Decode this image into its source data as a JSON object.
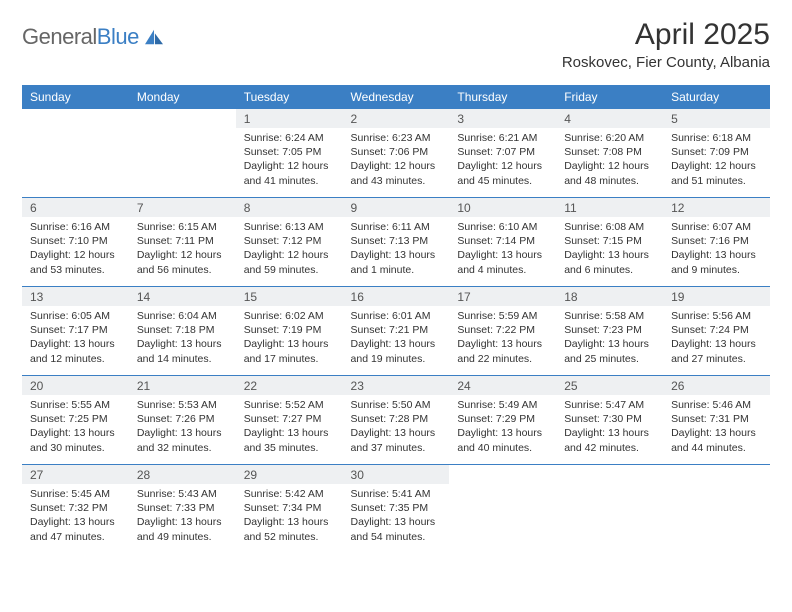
{
  "brand": {
    "part1": "General",
    "part2": "Blue"
  },
  "title": "April 2025",
  "location": "Roskovec, Fier County, Albania",
  "colors": {
    "accent": "#3b7fc4",
    "dayHeaderBg": "#eef0f2",
    "text": "#333333",
    "bg": "#ffffff"
  },
  "weekdays": [
    "Sunday",
    "Monday",
    "Tuesday",
    "Wednesday",
    "Thursday",
    "Friday",
    "Saturday"
  ],
  "weeks": [
    [
      {
        "empty": true
      },
      {
        "empty": true
      },
      {
        "day": "1",
        "sunrise": "Sunrise: 6:24 AM",
        "sunset": "Sunset: 7:05 PM",
        "daylight": "Daylight: 12 hours and 41 minutes."
      },
      {
        "day": "2",
        "sunrise": "Sunrise: 6:23 AM",
        "sunset": "Sunset: 7:06 PM",
        "daylight": "Daylight: 12 hours and 43 minutes."
      },
      {
        "day": "3",
        "sunrise": "Sunrise: 6:21 AM",
        "sunset": "Sunset: 7:07 PM",
        "daylight": "Daylight: 12 hours and 45 minutes."
      },
      {
        "day": "4",
        "sunrise": "Sunrise: 6:20 AM",
        "sunset": "Sunset: 7:08 PM",
        "daylight": "Daylight: 12 hours and 48 minutes."
      },
      {
        "day": "5",
        "sunrise": "Sunrise: 6:18 AM",
        "sunset": "Sunset: 7:09 PM",
        "daylight": "Daylight: 12 hours and 51 minutes."
      }
    ],
    [
      {
        "day": "6",
        "sunrise": "Sunrise: 6:16 AM",
        "sunset": "Sunset: 7:10 PM",
        "daylight": "Daylight: 12 hours and 53 minutes."
      },
      {
        "day": "7",
        "sunrise": "Sunrise: 6:15 AM",
        "sunset": "Sunset: 7:11 PM",
        "daylight": "Daylight: 12 hours and 56 minutes."
      },
      {
        "day": "8",
        "sunrise": "Sunrise: 6:13 AM",
        "sunset": "Sunset: 7:12 PM",
        "daylight": "Daylight: 12 hours and 59 minutes."
      },
      {
        "day": "9",
        "sunrise": "Sunrise: 6:11 AM",
        "sunset": "Sunset: 7:13 PM",
        "daylight": "Daylight: 13 hours and 1 minute."
      },
      {
        "day": "10",
        "sunrise": "Sunrise: 6:10 AM",
        "sunset": "Sunset: 7:14 PM",
        "daylight": "Daylight: 13 hours and 4 minutes."
      },
      {
        "day": "11",
        "sunrise": "Sunrise: 6:08 AM",
        "sunset": "Sunset: 7:15 PM",
        "daylight": "Daylight: 13 hours and 6 minutes."
      },
      {
        "day": "12",
        "sunrise": "Sunrise: 6:07 AM",
        "sunset": "Sunset: 7:16 PM",
        "daylight": "Daylight: 13 hours and 9 minutes."
      }
    ],
    [
      {
        "day": "13",
        "sunrise": "Sunrise: 6:05 AM",
        "sunset": "Sunset: 7:17 PM",
        "daylight": "Daylight: 13 hours and 12 minutes."
      },
      {
        "day": "14",
        "sunrise": "Sunrise: 6:04 AM",
        "sunset": "Sunset: 7:18 PM",
        "daylight": "Daylight: 13 hours and 14 minutes."
      },
      {
        "day": "15",
        "sunrise": "Sunrise: 6:02 AM",
        "sunset": "Sunset: 7:19 PM",
        "daylight": "Daylight: 13 hours and 17 minutes."
      },
      {
        "day": "16",
        "sunrise": "Sunrise: 6:01 AM",
        "sunset": "Sunset: 7:21 PM",
        "daylight": "Daylight: 13 hours and 19 minutes."
      },
      {
        "day": "17",
        "sunrise": "Sunrise: 5:59 AM",
        "sunset": "Sunset: 7:22 PM",
        "daylight": "Daylight: 13 hours and 22 minutes."
      },
      {
        "day": "18",
        "sunrise": "Sunrise: 5:58 AM",
        "sunset": "Sunset: 7:23 PM",
        "daylight": "Daylight: 13 hours and 25 minutes."
      },
      {
        "day": "19",
        "sunrise": "Sunrise: 5:56 AM",
        "sunset": "Sunset: 7:24 PM",
        "daylight": "Daylight: 13 hours and 27 minutes."
      }
    ],
    [
      {
        "day": "20",
        "sunrise": "Sunrise: 5:55 AM",
        "sunset": "Sunset: 7:25 PM",
        "daylight": "Daylight: 13 hours and 30 minutes."
      },
      {
        "day": "21",
        "sunrise": "Sunrise: 5:53 AM",
        "sunset": "Sunset: 7:26 PM",
        "daylight": "Daylight: 13 hours and 32 minutes."
      },
      {
        "day": "22",
        "sunrise": "Sunrise: 5:52 AM",
        "sunset": "Sunset: 7:27 PM",
        "daylight": "Daylight: 13 hours and 35 minutes."
      },
      {
        "day": "23",
        "sunrise": "Sunrise: 5:50 AM",
        "sunset": "Sunset: 7:28 PM",
        "daylight": "Daylight: 13 hours and 37 minutes."
      },
      {
        "day": "24",
        "sunrise": "Sunrise: 5:49 AM",
        "sunset": "Sunset: 7:29 PM",
        "daylight": "Daylight: 13 hours and 40 minutes."
      },
      {
        "day": "25",
        "sunrise": "Sunrise: 5:47 AM",
        "sunset": "Sunset: 7:30 PM",
        "daylight": "Daylight: 13 hours and 42 minutes."
      },
      {
        "day": "26",
        "sunrise": "Sunrise: 5:46 AM",
        "sunset": "Sunset: 7:31 PM",
        "daylight": "Daylight: 13 hours and 44 minutes."
      }
    ],
    [
      {
        "day": "27",
        "sunrise": "Sunrise: 5:45 AM",
        "sunset": "Sunset: 7:32 PM",
        "daylight": "Daylight: 13 hours and 47 minutes."
      },
      {
        "day": "28",
        "sunrise": "Sunrise: 5:43 AM",
        "sunset": "Sunset: 7:33 PM",
        "daylight": "Daylight: 13 hours and 49 minutes."
      },
      {
        "day": "29",
        "sunrise": "Sunrise: 5:42 AM",
        "sunset": "Sunset: 7:34 PM",
        "daylight": "Daylight: 13 hours and 52 minutes."
      },
      {
        "day": "30",
        "sunrise": "Sunrise: 5:41 AM",
        "sunset": "Sunset: 7:35 PM",
        "daylight": "Daylight: 13 hours and 54 minutes."
      },
      {
        "empty": true
      },
      {
        "empty": true
      },
      {
        "empty": true
      }
    ]
  ]
}
